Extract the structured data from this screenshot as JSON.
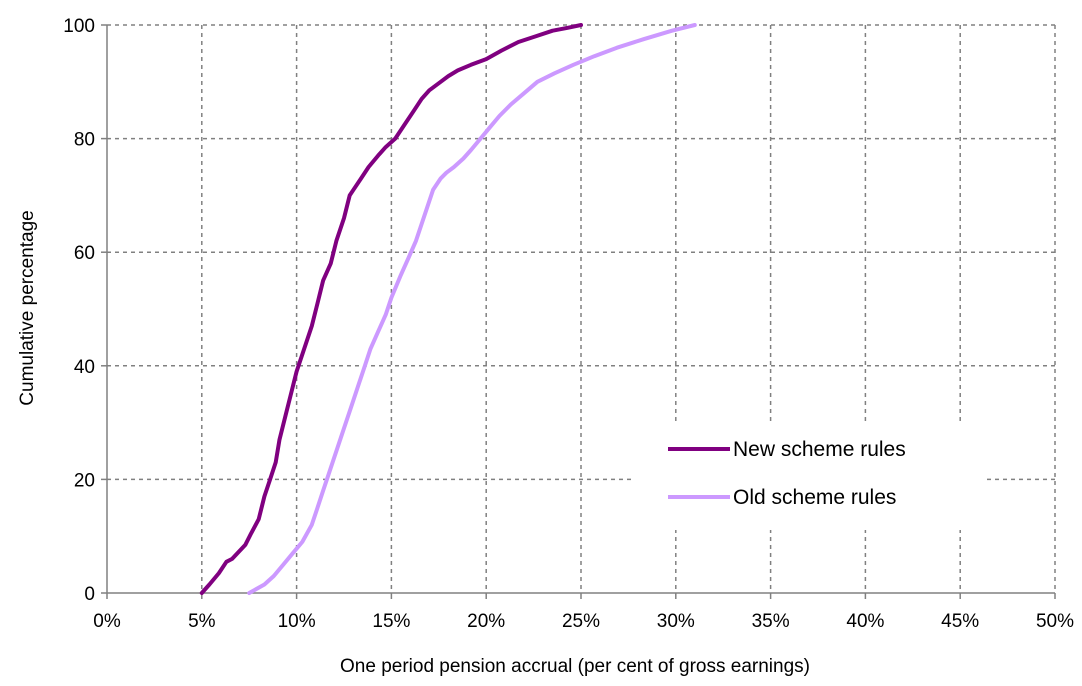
{
  "chart_data": {
    "type": "line",
    "title": "",
    "xlabel": "One period pension accrual (per cent of gross earnings)",
    "ylabel": "Cumulative percentage",
    "xlim": [
      0,
      50
    ],
    "ylim": [
      0,
      100
    ],
    "x_ticks": [
      0,
      5,
      10,
      15,
      20,
      25,
      30,
      35,
      40,
      45,
      50
    ],
    "x_tick_labels": [
      "0%",
      "5%",
      "10%",
      "15%",
      "20%",
      "25%",
      "30%",
      "35%",
      "40%",
      "45%",
      "50%"
    ],
    "y_ticks": [
      0,
      20,
      40,
      60,
      80,
      100
    ],
    "y_tick_labels": [
      "0",
      "20",
      "40",
      "60",
      "80",
      "100"
    ],
    "grid": true,
    "legend_position": "lower-right",
    "series": [
      {
        "name": "New scheme rules",
        "color": "#800080",
        "x": [
          5.0,
          5.4,
          5.9,
          6.3,
          6.6,
          7.3,
          7.6,
          8.0,
          8.3,
          8.6,
          8.9,
          9.1,
          9.4,
          9.7,
          10.0,
          10.4,
          10.8,
          11.1,
          11.4,
          11.8,
          12.1,
          12.5,
          12.8,
          13.0,
          13.4,
          13.8,
          14.3,
          14.7,
          15.2,
          15.7,
          16.2,
          16.6,
          17.0,
          17.6,
          18.0,
          18.5,
          19.2,
          20.0,
          20.8,
          21.7,
          22.6,
          23.5,
          24.3,
          25.0
        ],
        "y": [
          0,
          1.5,
          3.5,
          5.5,
          6,
          8.5,
          10.5,
          13,
          17,
          20,
          23,
          27,
          31,
          35,
          39,
          43,
          47,
          51,
          55,
          58,
          62,
          66,
          70,
          71,
          73,
          75,
          77,
          78.5,
          80,
          82.5,
          85,
          87,
          88.5,
          90,
          91,
          92,
          93,
          94,
          95.5,
          97,
          98,
          99,
          99.5,
          100
        ]
      },
      {
        "name": "Old scheme rules",
        "color": "#cc99ff",
        "x": [
          7.5,
          8.3,
          8.8,
          9.3,
          9.8,
          10.3,
          10.8,
          11.1,
          11.4,
          11.7,
          12.1,
          12.5,
          12.9,
          13.3,
          13.6,
          13.9,
          14.3,
          14.7,
          15.0,
          15.5,
          15.9,
          16.3,
          16.6,
          16.9,
          17.2,
          17.6,
          17.9,
          18.3,
          18.8,
          19.2,
          19.7,
          20.2,
          20.7,
          21.3,
          22.0,
          22.7,
          23.6,
          24.6,
          25.7,
          26.9,
          28.3,
          29.8,
          31.0
        ],
        "y": [
          0,
          1.5,
          3,
          5,
          7,
          9,
          12,
          15,
          18,
          21,
          25,
          29,
          33,
          37,
          40,
          43,
          46,
          49,
          52,
          56,
          59,
          62,
          65,
          68,
          71,
          73,
          74,
          75,
          76.5,
          78,
          80,
          82,
          84,
          86,
          88,
          90,
          91.5,
          93,
          94.5,
          96,
          97.5,
          99,
          100
        ]
      }
    ]
  }
}
